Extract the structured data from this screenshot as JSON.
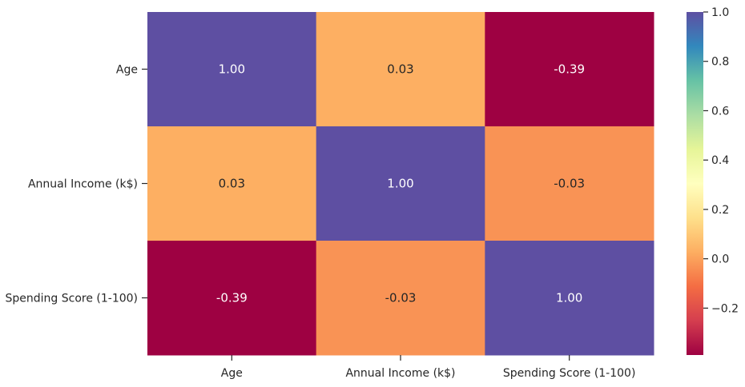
{
  "chart_data": {
    "type": "heatmap",
    "title": "",
    "xlabel": "",
    "ylabel": "",
    "x_labels": [
      "Age",
      "Annual Income (k$)",
      "Spending Score (1-100)"
    ],
    "y_labels": [
      "Age",
      "Annual Income (k$)",
      "Spending Score (1-100)"
    ],
    "values": [
      [
        1.0,
        0.03,
        -0.39
      ],
      [
        0.03,
        1.0,
        -0.03
      ],
      [
        -0.39,
        -0.03,
        1.0
      ]
    ],
    "annotations": [
      [
        "1.00",
        "0.03",
        "-0.39"
      ],
      [
        "0.03",
        "1.00",
        "-0.03"
      ],
      [
        "-0.39",
        "-0.03",
        "1.00"
      ]
    ],
    "colormap": "Spectral",
    "colorbar": {
      "range": [
        -0.39,
        1.0
      ],
      "ticks": [
        1.0,
        0.8,
        0.6,
        0.4,
        0.2,
        0.0,
        -0.2
      ],
      "tick_labels": [
        "1.0",
        "0.8",
        "0.6",
        "0.4",
        "0.2",
        "0.0",
        "−0.2"
      ]
    },
    "grid": false
  }
}
